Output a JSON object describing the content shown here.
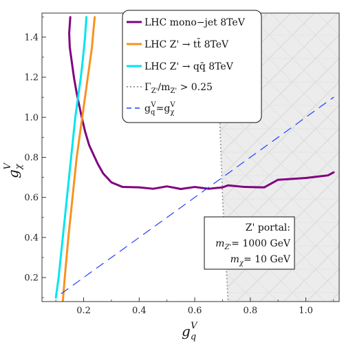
{
  "chart_data": {
    "type": "line",
    "xlim": [
      0.05,
      1.12
    ],
    "ylim": [
      0.08,
      1.52
    ],
    "x_ticks": [
      {
        "value": 0.2,
        "label": "0.2"
      },
      {
        "value": 0.4,
        "label": "0.4"
      },
      {
        "value": 0.6,
        "label": "0.6"
      },
      {
        "value": 0.8,
        "label": "0.8"
      },
      {
        "value": 1.0,
        "label": "1.0"
      }
    ],
    "y_ticks": [
      {
        "value": 0.2,
        "label": "0.2"
      },
      {
        "value": 0.4,
        "label": "0.4"
      },
      {
        "value": 0.6,
        "label": "0.6"
      },
      {
        "value": 0.8,
        "label": "0.8"
      },
      {
        "value": 1.0,
        "label": "1.0"
      },
      {
        "value": 1.2,
        "label": "1.2"
      },
      {
        "value": 1.4,
        "label": "1.4"
      }
    ],
    "xlabel": {
      "base": "g",
      "sub": "q",
      "sup": "V"
    },
    "ylabel": {
      "base": "g",
      "sub": "χ",
      "sup": "V"
    },
    "grid": false,
    "legend_position": "top-center",
    "shaded_region": {
      "boundary": [
        {
          "x": 0.68,
          "y": 1.52
        },
        {
          "x": 0.69,
          "y": 1.0
        },
        {
          "x": 0.7,
          "y": 0.6
        },
        {
          "x": 0.72,
          "y": 0.08
        }
      ],
      "fill": "#ececec",
      "hatch_color": "#d2d2d2",
      "boundary_color": "#999999"
    },
    "series": [
      {
        "name": "LHC mono−jet 8TeV",
        "color": "#800080",
        "style": "solid",
        "points": [
          {
            "x": 0.152,
            "y": 1.5
          },
          {
            "x": 0.148,
            "y": 1.42
          },
          {
            "x": 0.15,
            "y": 1.35
          },
          {
            "x": 0.158,
            "y": 1.27
          },
          {
            "x": 0.165,
            "y": 1.2
          },
          {
            "x": 0.175,
            "y": 1.12
          },
          {
            "x": 0.19,
            "y": 1.02
          },
          {
            "x": 0.205,
            "y": 0.93
          },
          {
            "x": 0.22,
            "y": 0.86
          },
          {
            "x": 0.25,
            "y": 0.77
          },
          {
            "x": 0.27,
            "y": 0.72
          },
          {
            "x": 0.3,
            "y": 0.675
          },
          {
            "x": 0.34,
            "y": 0.652
          },
          {
            "x": 0.4,
            "y": 0.65
          },
          {
            "x": 0.45,
            "y": 0.643
          },
          {
            "x": 0.5,
            "y": 0.655
          },
          {
            "x": 0.55,
            "y": 0.642
          },
          {
            "x": 0.6,
            "y": 0.652
          },
          {
            "x": 0.65,
            "y": 0.643
          },
          {
            "x": 0.7,
            "y": 0.65
          },
          {
            "x": 0.72,
            "y": 0.66
          },
          {
            "x": 0.78,
            "y": 0.652
          },
          {
            "x": 0.85,
            "y": 0.65
          },
          {
            "x": 0.9,
            "y": 0.688
          },
          {
            "x": 0.95,
            "y": 0.692
          },
          {
            "x": 1.0,
            "y": 0.697
          },
          {
            "x": 1.05,
            "y": 0.705
          },
          {
            "x": 1.08,
            "y": 0.71
          },
          {
            "x": 1.1,
            "y": 0.725
          }
        ]
      },
      {
        "name": "LHC Z' → tt̄ 8TeV",
        "color": "#f7931e",
        "style": "solid",
        "points": [
          {
            "x": 0.125,
            "y": 0.08
          },
          {
            "x": 0.132,
            "y": 0.2
          },
          {
            "x": 0.145,
            "y": 0.4
          },
          {
            "x": 0.16,
            "y": 0.6
          },
          {
            "x": 0.175,
            "y": 0.8
          },
          {
            "x": 0.19,
            "y": 0.95
          },
          {
            "x": 0.2,
            "y": 1.05
          },
          {
            "x": 0.21,
            "y": 1.15
          },
          {
            "x": 0.22,
            "y": 1.25
          },
          {
            "x": 0.23,
            "y": 1.35
          },
          {
            "x": 0.235,
            "y": 1.43
          },
          {
            "x": 0.24,
            "y": 1.5
          }
        ]
      },
      {
        "name": "LHC Z' → qq̄ 8TeV",
        "color": "#00e5ee",
        "style": "solid",
        "points": [
          {
            "x": 0.1,
            "y": 0.1
          },
          {
            "x": 0.11,
            "y": 0.2
          },
          {
            "x": 0.125,
            "y": 0.4
          },
          {
            "x": 0.14,
            "y": 0.6
          },
          {
            "x": 0.155,
            "y": 0.8
          },
          {
            "x": 0.17,
            "y": 1.0
          },
          {
            "x": 0.18,
            "y": 1.1
          },
          {
            "x": 0.19,
            "y": 1.2
          },
          {
            "x": 0.198,
            "y": 1.3
          },
          {
            "x": 0.205,
            "y": 1.4
          },
          {
            "x": 0.21,
            "y": 1.5
          }
        ]
      },
      {
        "name": "Γ",
        "color": "#999999",
        "style": "dotted",
        "points": []
      },
      {
        "name": "g",
        "color": "#1f3fff",
        "style": "dashed",
        "points": [
          {
            "x": 0.12,
            "y": 0.12
          },
          {
            "x": 1.1,
            "y": 1.1
          }
        ]
      }
    ],
    "legend_labels": [
      {
        "text": "LHC mono−jet 8TeV"
      },
      {
        "text": "LHC Z' → tt̄ 8TeV"
      },
      {
        "text": "LHC Z' → qq̄ 8TeV"
      },
      {
        "base": "Γ",
        "sub": "Z'",
        "mid": "/m",
        "sub2": "Z'",
        "tail": " > 0.25"
      },
      {
        "base": "g",
        "sub": "q",
        "sup": "V",
        "mid": "=g",
        "sub2": "χ",
        "sup2": "V"
      }
    ],
    "annotation_box": {
      "line1": "Z' portal:",
      "line2": {
        "m": "m",
        "sub": "Z'",
        "text": "= 1000 GeV"
      },
      "line3": {
        "m": "m",
        "sub": "χ",
        "text": "= 10 GeV"
      }
    }
  }
}
